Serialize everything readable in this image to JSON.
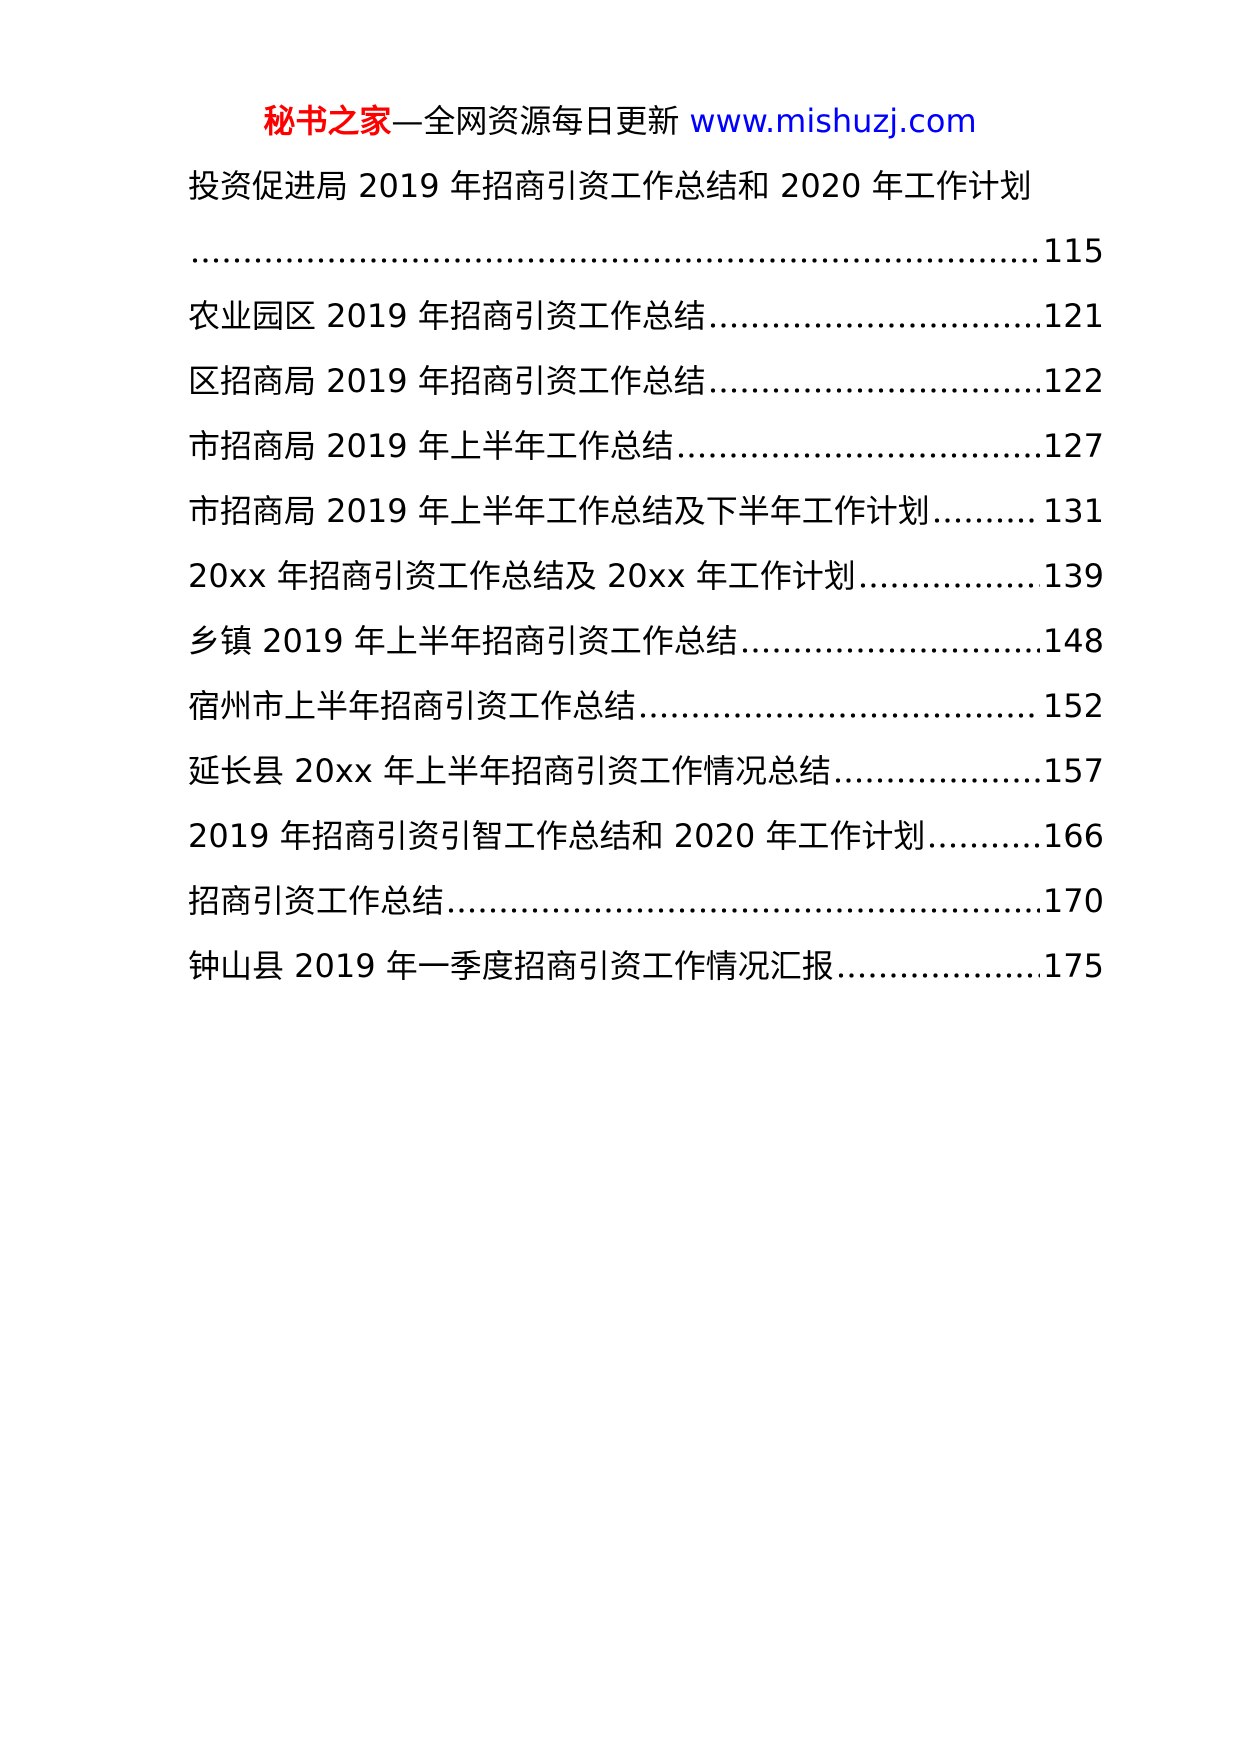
{
  "header": {
    "brand": "秘书之家",
    "separator_dash": "—",
    "tagline": "全网资源每日更新",
    "url": "www.mishuzj.com",
    "brand_color": "#ff0000",
    "url_color": "#0000ff",
    "text_color": "#000000"
  },
  "toc": {
    "entries": [
      {
        "title": "投资促进局 2019 年招商引资工作总结和 2020 年工作计划",
        "page": "115"
      },
      {
        "title": "农业园区 2019 年招商引资工作总结",
        "page": "121"
      },
      {
        "title": "区招商局 2019 年招商引资工作总结",
        "page": "122"
      },
      {
        "title": "市招商局 2019 年上半年工作总结",
        "page": "127"
      },
      {
        "title": "市招商局 2019 年上半年工作总结及下半年工作计划",
        "page": "131"
      },
      {
        "title": "20xx 年招商引资工作总结及 20xx 年工作计划",
        "page": "139"
      },
      {
        "title": "乡镇 2019 年上半年招商引资工作总结",
        "page": "148"
      },
      {
        "title": "宿州市上半年招商引资工作总结",
        "page": "152"
      },
      {
        "title": "延长县 20xx 年上半年招商引资工作情况总结",
        "page": "157"
      },
      {
        "title": "2019 年招商引资引智工作总结和 2020 年工作计划",
        "page": "166"
      },
      {
        "title": "招商引资工作总结",
        "page": "170"
      },
      {
        "title": "钟山县 2019 年一季度招商引资工作情况汇报",
        "page": "175"
      }
    ]
  }
}
